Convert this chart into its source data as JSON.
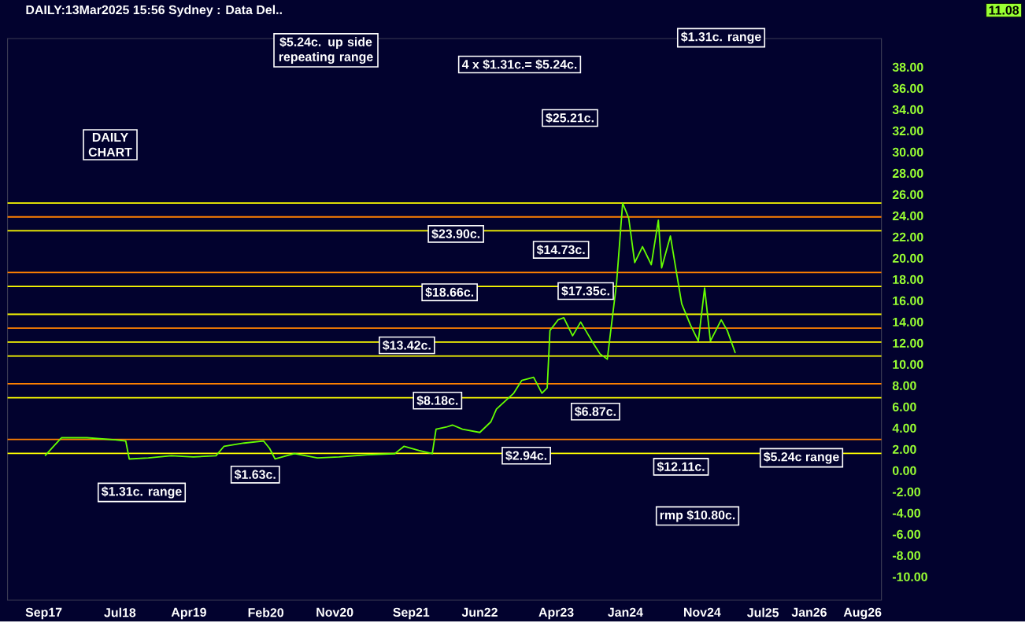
{
  "chart_data": {
    "type": "line",
    "title": "DAILY:13Mar2025 15:56 Sydney : Data Del..",
    "x": [
      "2017-09-06",
      "2017-10-10",
      "2017-11-11",
      "2018-02-20",
      "2018-06-12",
      "2018-07-24",
      "2018-08-07",
      "2018-10-22",
      "2019-01-21",
      "2019-04-19",
      "2019-07-18",
      "2019-08-19",
      "2019-11-07",
      "2020-01-23",
      "2020-02-16",
      "2020-03-09",
      "2020-05-25",
      "2020-08-24",
      "2020-11-19",
      "2021-03-11",
      "2021-06-28",
      "2021-08-04",
      "2021-10-01",
      "2021-11-24",
      "2021-12-09",
      "2022-01-18",
      "2022-02-12",
      "2022-03-24",
      "2022-06-01",
      "2022-07-15",
      "2022-08-06",
      "2022-10-14",
      "2022-11-15",
      "2023-01-01",
      "2023-02-03",
      "2023-02-24",
      "2023-03-07",
      "2023-04-08",
      "2023-05-01",
      "2023-06-05",
      "2023-07-07",
      "2023-08-21",
      "2023-09-22",
      "2023-10-21",
      "2023-11-09",
      "2023-11-27",
      "2023-12-21",
      "2024-01-14",
      "2024-02-07",
      "2024-03-09",
      "2024-04-13",
      "2024-05-11",
      "2024-05-24",
      "2024-06-28",
      "2024-07-19",
      "2024-08-12",
      "2024-09-16",
      "2024-10-17",
      "2024-11-11",
      "2024-12-04",
      "2025-01-16",
      "2025-02-09",
      "2025-03-13"
    ],
    "series": [
      {
        "color": "#66ff00",
        "values": [
          1.4,
          2.3,
          3.1,
          3.1,
          2.9,
          2.8,
          1.1,
          1.2,
          1.4,
          1.3,
          1.4,
          2.3,
          2.6,
          2.8,
          2.1,
          1.1,
          1.6,
          1.2,
          1.3,
          1.5,
          1.6,
          2.3,
          1.9,
          1.6,
          3.9,
          4.1,
          4.3,
          3.9,
          3.6,
          4.6,
          5.8,
          7.3,
          8.5,
          8.8,
          7.3,
          7.8,
          13.2,
          14.2,
          14.4,
          12.7,
          14.0,
          12.2,
          11.0,
          10.5,
          14.2,
          17.7,
          25.21,
          23.8,
          19.6,
          21.1,
          19.4,
          23.6,
          19.1,
          22.1,
          19.1,
          15.7,
          13.7,
          12.2,
          17.2,
          12.2,
          14.2,
          13.2,
          11.08
        ]
      }
    ],
    "xlim": [
      "2017-04-10",
      "2026-10-15"
    ],
    "xticks": [
      {
        "value": "2017-09-01",
        "label": "Sep17"
      },
      {
        "value": "2018-07-01",
        "label": "Jul18"
      },
      {
        "value": "2019-04-01",
        "label": "Apr19"
      },
      {
        "value": "2020-02-01",
        "label": "Feb20"
      },
      {
        "value": "2020-11-01",
        "label": "Nov20"
      },
      {
        "value": "2021-09-01",
        "label": "Sep21"
      },
      {
        "value": "2022-06-01",
        "label": "Jun22"
      },
      {
        "value": "2023-04-01",
        "label": "Apr23"
      },
      {
        "value": "2024-01-01",
        "label": "Jan24"
      },
      {
        "value": "2024-11-01",
        "label": "Nov24"
      },
      {
        "value": "2025-07-01",
        "label": "Jul25"
      },
      {
        "value": "2026-01-01",
        "label": "Jan26"
      },
      {
        "value": "2026-08-01",
        "label": "Aug26"
      }
    ],
    "ylim": [
      -12.2,
      40.7
    ],
    "yticks": [
      {
        "value": 38,
        "label": "38.00"
      },
      {
        "value": 36,
        "label": "36.00"
      },
      {
        "value": 34,
        "label": "34.00"
      },
      {
        "value": 32,
        "label": "32.00"
      },
      {
        "value": 30,
        "label": "30.00"
      },
      {
        "value": 28,
        "label": "28.00"
      },
      {
        "value": 26,
        "label": "26.00"
      },
      {
        "value": 24,
        "label": "24.00"
      },
      {
        "value": 22,
        "label": "22.00"
      },
      {
        "value": 20,
        "label": "20.00"
      },
      {
        "value": 18,
        "label": "18.00"
      },
      {
        "value": 16,
        "label": "16.00"
      },
      {
        "value": 14,
        "label": "14.00"
      },
      {
        "value": 12,
        "label": "12.00"
      },
      {
        "value": 10,
        "label": "10.00"
      },
      {
        "value": 8,
        "label": "8.00"
      },
      {
        "value": 6,
        "label": "6.00"
      },
      {
        "value": 4,
        "label": "4.00"
      },
      {
        "value": 2,
        "label": "2.00"
      },
      {
        "value": 0,
        "label": "0.00"
      },
      {
        "value": -2,
        "label": "-2.00"
      },
      {
        "value": -4,
        "label": "-4.00"
      },
      {
        "value": -6,
        "label": "-6.00"
      },
      {
        "value": -8,
        "label": "-8.00"
      },
      {
        "value": -10,
        "label": "-10.00"
      }
    ],
    "ref_lines": [
      {
        "axis": "y",
        "value": 23.9,
        "color": "#ff8000"
      },
      {
        "axis": "y",
        "value": 18.66,
        "color": "#ff8000"
      },
      {
        "axis": "y",
        "value": 13.42,
        "color": "#ff8000"
      },
      {
        "axis": "y",
        "value": 8.18,
        "color": "#ff8000"
      },
      {
        "axis": "y",
        "value": 2.94,
        "color": "#ff8000"
      },
      {
        "axis": "y",
        "value": 25.21,
        "color": "#ffff00"
      },
      {
        "axis": "y",
        "value": 22.6,
        "color": "#ffff00"
      },
      {
        "axis": "y",
        "value": 17.35,
        "color": "#ffff00"
      },
      {
        "axis": "y",
        "value": 14.73,
        "color": "#ffff00"
      },
      {
        "axis": "y",
        "value": 12.11,
        "color": "#ffff00"
      },
      {
        "axis": "y",
        "value": 10.8,
        "color": "#ffff00"
      },
      {
        "axis": "y",
        "value": 6.87,
        "color": "#ffff00"
      },
      {
        "axis": "y",
        "value": 1.63,
        "color": "#ffff00"
      }
    ],
    "annotations": [
      "DAILY CHART",
      "$5.24c. up side repeating range",
      "4 x $1.31c.= $5.24c.",
      "$1.31c. range",
      "$25.21c.",
      {
        "text": "$23.90c.",
        "x": "2022-02-26",
        "y": 22.3
      },
      {
        "text": "$18.66c.",
        "x": "2022-02-01",
        "y": 16.8
      },
      {
        "text": "$14.73c.",
        "x": "2023-04-20",
        "y": 20.8
      },
      "$17.35c.",
      {
        "text": "$13.42c.",
        "x": "2021-08-15",
        "y": 11.8
      },
      {
        "text": "$8.18c.",
        "x": "2021-12-15",
        "y": 6.6
      },
      {
        "text": "$6.87c.",
        "x": "2023-09-04",
        "y": 5.56
      },
      {
        "text": "$2.94c.",
        "x": "2022-12-03",
        "y": 1.41
      },
      {
        "text": "$1.63c.",
        "x": "2019-12-21",
        "y": -0.37
      },
      "$1.31c. range",
      {
        "text": "$12.11c.",
        "x": "2024-08-09",
        "y": 0.37
      },
      "$5.24c range",
      "rmp $10.80c.",
      "11.08"
    ],
    "marker": "none",
    "line_style": "solid",
    "grid": false
  }
}
